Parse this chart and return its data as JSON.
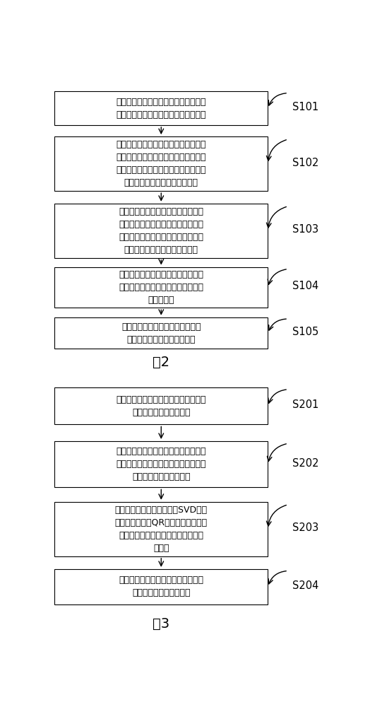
{
  "bg_color": "#ffffff",
  "box_color": "#ffffff",
  "box_edge_color": "#000000",
  "text_color": "#000000",
  "arrow_color": "#000000",
  "fig2_label": "图2",
  "fig3_label": "图3",
  "fig2_boxes": [
    {
      "text": "基站接收上行信号，根据接收的上行信\n号对期望用户和干扰用户进行信道估计",
      "step": "S101"
    },
    {
      "text": "构造各用户信道冲激响应矩阵，计算期\n望用户的空间协方差矩阵，并估计期望\n用户的来波方向，同时由干扰用户信道\n冲激响应估计干扰用户来波方向",
      "step": "S102"
    },
    {
      "text": "根据各干扰用户与期望用户来波方向\n差值、各干扰用户的信道冲激响应功\n率最大值及各干扰用户信道冲激响应\n矩阵，构造期望用户的干扰矩阵",
      "step": "S103"
    },
    {
      "text": "基于构造的干扰矩阵和期望用户的空\n间协方差矩阵，计算期望用户的波束\n赋形权向量",
      "step": "S104"
    },
    {
      "text": "根据计算的赋形权值加权各天线幅\n相，对期望用户下行波束赋形",
      "step": "S105"
    }
  ],
  "fig3_boxes": [
    {
      "text": "计算干扰矩阵的协方差矩阵，并对干扰\n协方差矩阵进行矩阵求逆",
      "step": "S201"
    },
    {
      "text": "将干扰矩阵逆矩阵与期望用户空间协方\n差矩阵相左乘，得到期望用户考虑干扰\n的修正的空间协方差矩阵",
      "step": "S202"
    },
    {
      "text": "对修正的空间协方差矩阵做SVD分解\n（或特征分解、QR分解），将最大特\n征值对应的特征向量作为下行波束赋\n形权值",
      "step": "S203"
    },
    {
      "text": "利用赋形权值加权各天线幅相，对期\n望用户进行下行波束赋形",
      "step": "S204"
    }
  ]
}
